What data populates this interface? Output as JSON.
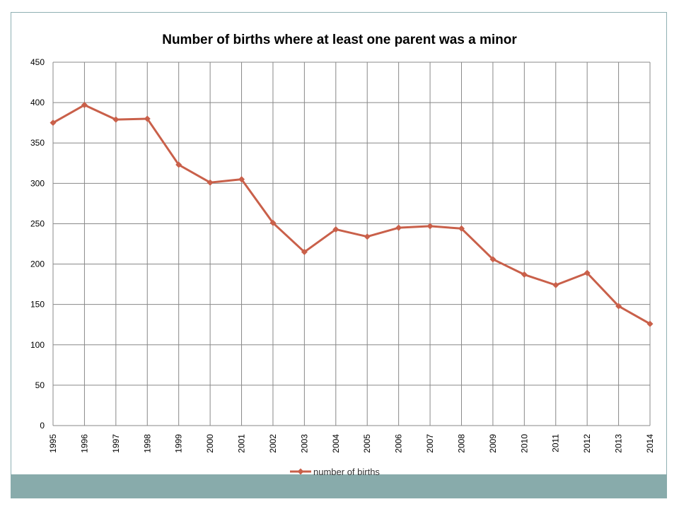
{
  "chart_data": {
    "type": "line",
    "title": "Number of births where at least one parent was a minor",
    "xlabel": "",
    "ylabel": "",
    "categories": [
      "1995",
      "1996",
      "1997",
      "1998",
      "1999",
      "2000",
      "2001",
      "2002",
      "2003",
      "2004",
      "2005",
      "2006",
      "2007",
      "2008",
      "2009",
      "2010",
      "2011",
      "2012",
      "2013",
      "2014"
    ],
    "series": [
      {
        "name": "number of births",
        "values": [
          375,
          397,
          379,
          380,
          323,
          301,
          305,
          251,
          215,
          243,
          234,
          245,
          247,
          244,
          206,
          187,
          174,
          189,
          148,
          126
        ]
      }
    ],
    "ylim": [
      0,
      450
    ],
    "yticks": [
      "0",
      "50",
      "100",
      "150",
      "200",
      "250",
      "300",
      "350",
      "400",
      "450"
    ],
    "grid": true,
    "legend_position": "bottom",
    "colors": {
      "line": "#c9604a",
      "grid": "#888888"
    }
  }
}
